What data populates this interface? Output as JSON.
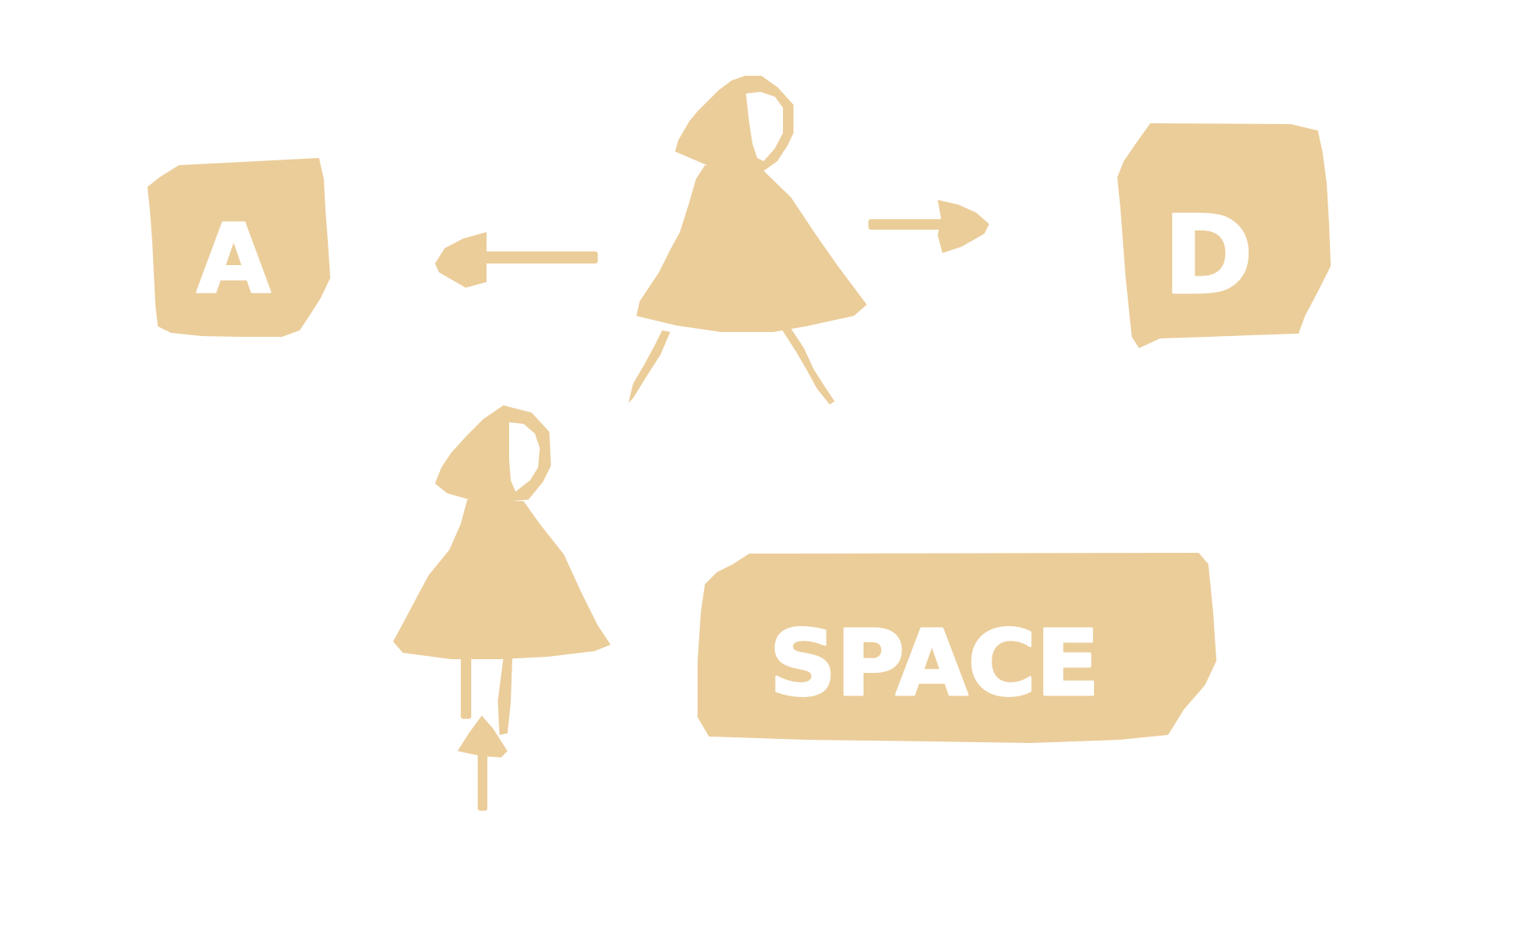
{
  "colors": {
    "background": "#ffffff",
    "ink": "#ebcd9a",
    "key_text": "#ffffff"
  },
  "controls": {
    "move_left": {
      "key": "A",
      "icon": "arrow-left-icon"
    },
    "move_right": {
      "key": "D",
      "icon": "arrow-right-icon"
    },
    "jump": {
      "key": "SPACE",
      "icon": "arrow-up-icon"
    }
  },
  "figures": {
    "walking": {
      "icon": "walking-girl-icon"
    },
    "jumping": {
      "icon": "jumping-girl-icon"
    }
  }
}
